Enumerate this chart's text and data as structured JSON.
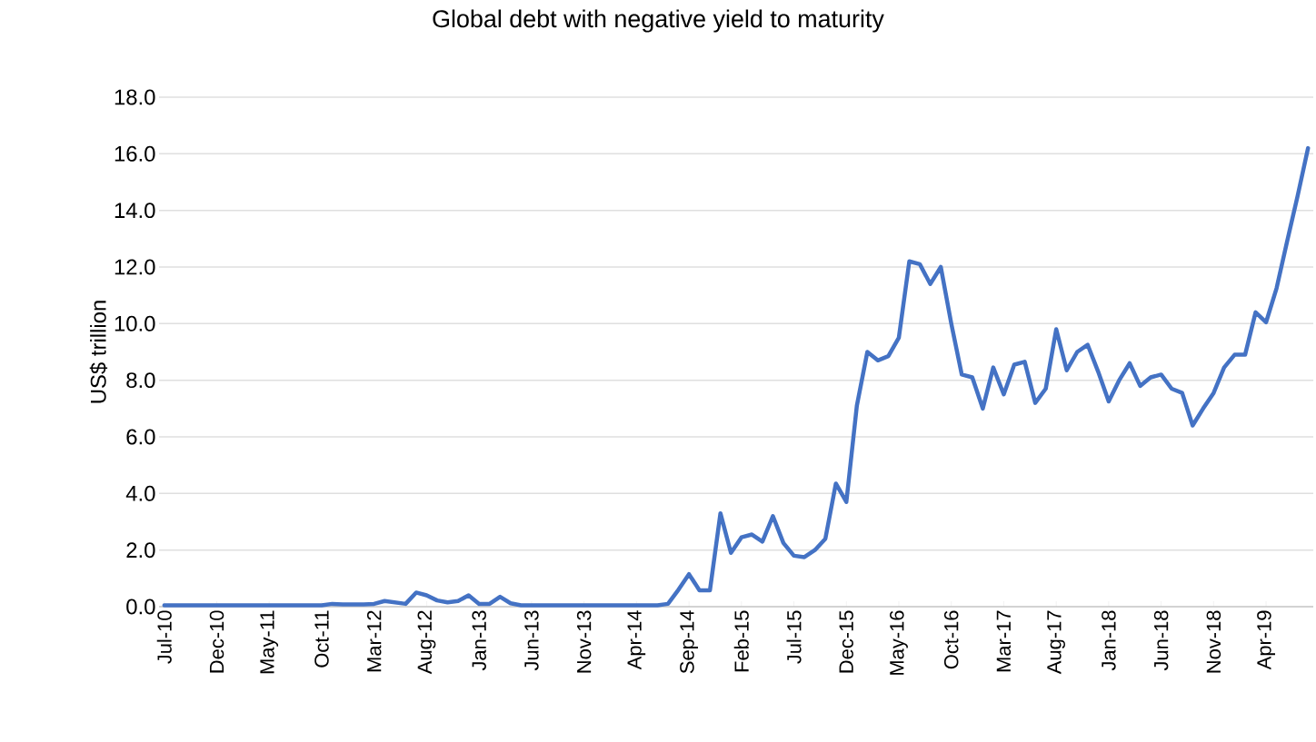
{
  "chart_data": {
    "type": "line",
    "title": "Global debt with negative yield to maturity",
    "ylabel": "US$ trillion",
    "categories": [
      "Jul-10",
      null,
      null,
      null,
      null,
      "Dec-10",
      null,
      null,
      null,
      null,
      "May-11",
      null,
      null,
      null,
      null,
      "Oct-11",
      null,
      null,
      null,
      null,
      "Mar-12",
      null,
      null,
      null,
      null,
      "Aug-12",
      null,
      null,
      null,
      null,
      "Jan-13",
      null,
      null,
      null,
      null,
      "Jun-13",
      null,
      null,
      null,
      null,
      "Nov-13",
      null,
      null,
      null,
      null,
      "Apr-14",
      null,
      null,
      null,
      null,
      "Sep-14",
      null,
      null,
      null,
      null,
      "Feb-15",
      null,
      null,
      null,
      null,
      "Jul-15",
      null,
      null,
      null,
      null,
      "Dec-15",
      null,
      null,
      null,
      null,
      "May-16",
      null,
      null,
      null,
      null,
      "Oct-16",
      null,
      null,
      null,
      null,
      "Mar-17",
      null,
      null,
      null,
      null,
      "Aug-17",
      null,
      null,
      null,
      null,
      "Jan-18",
      null,
      null,
      null,
      null,
      "Jun-18",
      null,
      null,
      null,
      null,
      "Nov-18",
      null,
      null,
      null,
      null,
      "Apr-19",
      null,
      null,
      null,
      null
    ],
    "values": [
      0.05,
      0.05,
      0.05,
      0.05,
      0.05,
      0.05,
      0.05,
      0.05,
      0.05,
      0.05,
      0.05,
      0.05,
      0.05,
      0.05,
      0.05,
      0.05,
      0.1,
      0.08,
      0.08,
      0.08,
      0.1,
      0.2,
      0.15,
      0.1,
      0.5,
      0.4,
      0.22,
      0.15,
      0.2,
      0.4,
      0.1,
      0.1,
      0.35,
      0.12,
      0.05,
      0.05,
      0.05,
      0.05,
      0.05,
      0.05,
      0.05,
      0.05,
      0.05,
      0.05,
      0.05,
      0.05,
      0.05,
      0.05,
      0.1,
      0.6,
      1.15,
      0.58,
      0.58,
      3.3,
      1.9,
      2.45,
      2.55,
      2.3,
      3.2,
      2.25,
      1.8,
      1.75,
      2.0,
      2.4,
      4.35,
      3.7,
      7.1,
      9.0,
      8.7,
      8.85,
      9.5,
      12.2,
      12.1,
      11.4,
      12.0,
      10.0,
      8.2,
      8.1,
      7.0,
      8.45,
      7.5,
      8.55,
      8.65,
      7.2,
      7.7,
      9.8,
      8.35,
      9.0,
      9.25,
      8.3,
      7.25,
      8.0,
      8.6,
      7.8,
      8.1,
      8.2,
      7.7,
      7.55,
      6.4,
      7.0,
      7.55,
      8.45,
      8.9,
      8.9,
      10.4,
      10.05,
      11.25,
      12.9,
      14.5,
      16.2
    ],
    "color": "#4472c4",
    "ylim": [
      0,
      18
    ],
    "yticks": [
      {
        "value": 0,
        "label": "0.0"
      },
      {
        "value": 2,
        "label": "2.0"
      },
      {
        "value": 4,
        "label": "4.0"
      },
      {
        "value": 6,
        "label": "6.0"
      },
      {
        "value": 8,
        "label": "8.0"
      },
      {
        "value": 10,
        "label": "10.0"
      },
      {
        "value": 12,
        "label": "12.0"
      },
      {
        "value": 14,
        "label": "14.0"
      },
      {
        "value": 16,
        "label": "16.0"
      },
      {
        "value": 18,
        "label": "18.0"
      }
    ],
    "grid": "y"
  }
}
